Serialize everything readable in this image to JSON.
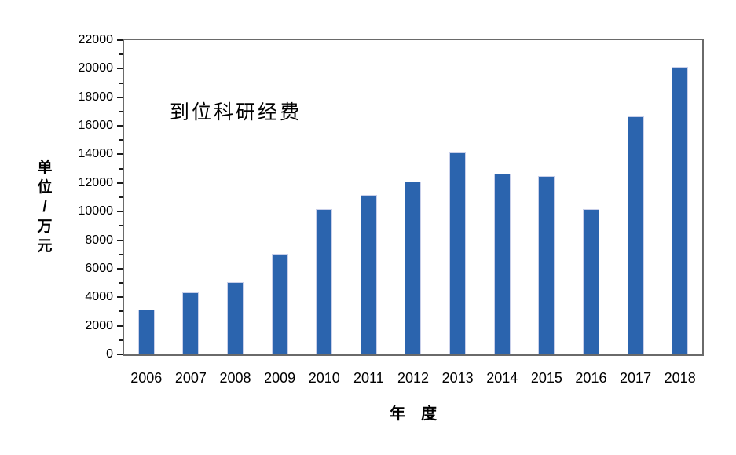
{
  "chart_data": {
    "type": "bar",
    "title": "到位科研经费",
    "xlabel": "年　度",
    "ylabel": "单位/万元",
    "ylabel_chars": [
      "单",
      "位",
      "/",
      "万",
      "元"
    ],
    "categories": [
      "2006",
      "2007",
      "2008",
      "2009",
      "2010",
      "2011",
      "2012",
      "2013",
      "2014",
      "2015",
      "2016",
      "2017",
      "2018"
    ],
    "values": [
      3150,
      4350,
      5050,
      7050,
      10150,
      11150,
      12100,
      14150,
      12650,
      12500,
      10150,
      16650,
      20150
    ],
    "ylim": [
      0,
      22000
    ],
    "y_major_ticks": [
      0,
      2000,
      4000,
      6000,
      8000,
      10000,
      12000,
      14000,
      16000,
      18000,
      20000,
      22000
    ],
    "y_minor_ticks": [
      1000,
      3000,
      5000,
      7000,
      9000,
      11000,
      13000,
      15000,
      17000,
      19000,
      21000
    ],
    "grid": false,
    "legend": false,
    "colors": {
      "bar_fill": "#2b64ae",
      "bar_border": "#c9d0ea",
      "frame": "#6a6a6a",
      "tick": "#1a1a1a",
      "text": "#000000",
      "background": "#ffffff"
    }
  }
}
